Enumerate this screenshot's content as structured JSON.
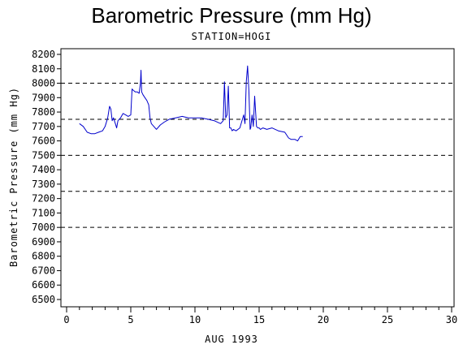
{
  "chart_data": {
    "type": "line",
    "title": "Barometric Pressure (mm Hg)",
    "subtitle": "STATION=HOGI",
    "xlabel": "AUG 1993",
    "ylabel": "Barometric Pressure (mm Hg)",
    "xlim": [
      0,
      30
    ],
    "ylim": [
      6500,
      8200
    ],
    "xticks": [
      0,
      5,
      10,
      15,
      20,
      25,
      30
    ],
    "yticks": [
      6500,
      6600,
      6700,
      6800,
      6900,
      7000,
      7100,
      7200,
      7300,
      7400,
      7500,
      7600,
      7700,
      7800,
      7900,
      8000,
      8100,
      8200
    ],
    "reference_lines": [
      7000,
      7250,
      7500,
      7750,
      8000
    ],
    "series_color": "#0000cc",
    "series": [
      {
        "x": [
          1.0,
          1.3,
          1.6,
          1.9,
          2.2,
          2.5,
          2.8,
          3.0,
          3.2,
          3.35,
          3.45,
          3.55,
          3.65,
          3.8,
          3.9,
          4.0,
          4.2,
          4.4,
          4.6,
          4.8,
          5.0,
          5.1,
          5.2,
          5.35,
          5.5,
          5.65,
          5.75,
          5.8,
          5.85,
          5.95,
          6.1,
          6.25,
          6.4,
          6.5,
          6.6,
          6.8,
          7.0,
          7.3,
          7.6,
          8.0,
          8.5,
          9.0,
          9.5,
          10.0,
          10.5,
          11.0,
          11.5,
          12.0,
          12.2,
          12.3,
          12.4,
          12.5,
          12.6,
          12.7,
          12.8,
          12.9,
          13.0,
          13.2,
          13.5,
          13.8,
          13.9,
          14.0,
          14.1,
          14.2,
          14.3,
          14.35,
          14.45,
          14.55,
          14.65,
          14.8,
          14.9,
          15.0,
          15.1,
          15.3,
          15.6,
          16.0,
          16.5,
          17.0,
          17.3,
          17.5,
          17.8,
          18.0,
          18.2,
          18.4
        ],
        "y": [
          7720,
          7700,
          7660,
          7650,
          7650,
          7660,
          7670,
          7700,
          7760,
          7840,
          7820,
          7740,
          7760,
          7720,
          7690,
          7740,
          7760,
          7790,
          7780,
          7770,
          7780,
          7960,
          7950,
          7940,
          7940,
          7930,
          8000,
          8090,
          7940,
          7920,
          7900,
          7880,
          7850,
          7760,
          7720,
          7700,
          7680,
          7710,
          7730,
          7750,
          7760,
          7770,
          7760,
          7760,
          7760,
          7750,
          7740,
          7720,
          7740,
          8010,
          7760,
          7780,
          7980,
          7690,
          7690,
          7670,
          7680,
          7670,
          7690,
          7780,
          7720,
          8010,
          8120,
          7950,
          7680,
          7690,
          7780,
          7700,
          7910,
          7700,
          7690,
          7690,
          7680,
          7690,
          7680,
          7690,
          7670,
          7660,
          7620,
          7610,
          7610,
          7600,
          7630,
          7630
        ]
      }
    ]
  }
}
